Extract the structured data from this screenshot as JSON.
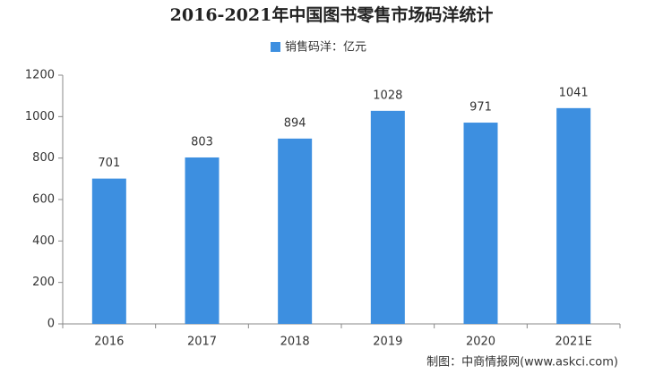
{
  "chart_data": {
    "type": "bar",
    "title": "2016-2021年中国图书零售市场码洋统计",
    "categories": [
      "2016",
      "2017",
      "2018",
      "2019",
      "2020",
      "2021E"
    ],
    "series": [
      {
        "name": "销售码洋：亿元",
        "color": "#3d8fe0",
        "values": [
          701,
          803,
          894,
          1028,
          971,
          1041
        ]
      }
    ],
    "ylim": [
      0,
      1200
    ],
    "yticks": [
      0,
      200,
      400,
      600,
      800,
      1000,
      1200
    ],
    "legend": "top",
    "source": "制图：中商情报网(www.askci.com)"
  }
}
